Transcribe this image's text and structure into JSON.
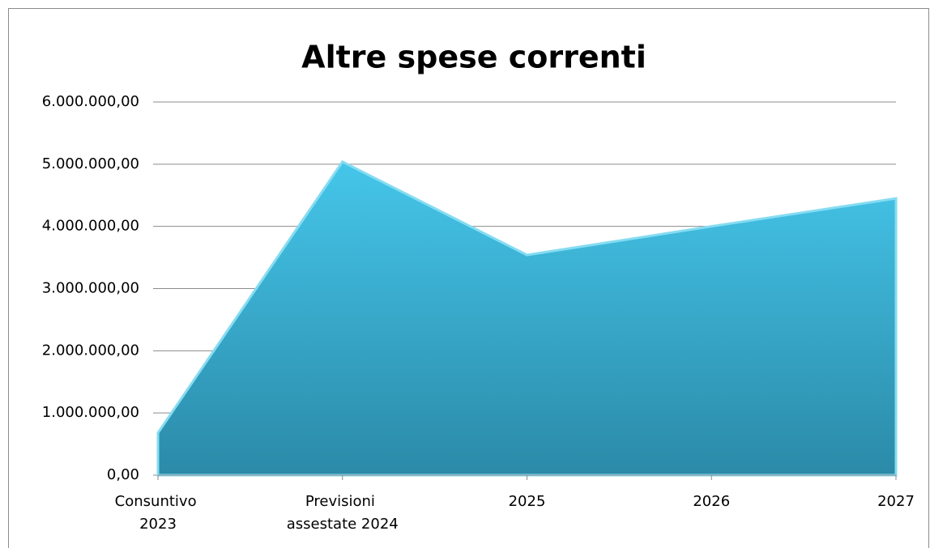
{
  "chart_data": {
    "type": "area",
    "title": "Altre spese correnti",
    "categories": [
      "Consuntivo 2023",
      "Previsioni assestate 2024",
      "2025",
      "2026",
      "2027"
    ],
    "values": [
      680000,
      5040000,
      3540000,
      4000000,
      4450000
    ],
    "color": "#3ab4d8",
    "ylim": [
      0,
      6000000
    ],
    "yticks": [
      {
        "value": 0,
        "label": "0,00"
      },
      {
        "value": 1000000,
        "label": "1.000.000,00"
      },
      {
        "value": 2000000,
        "label": "2.000.000,00"
      },
      {
        "value": 3000000,
        "label": "3.000.000,00"
      },
      {
        "value": 4000000,
        "label": "4.000.000,00"
      },
      {
        "value": 5000000,
        "label": "5.000.000,00"
      },
      {
        "value": 6000000,
        "label": "6.000.000,00"
      }
    ],
    "grid": true
  }
}
